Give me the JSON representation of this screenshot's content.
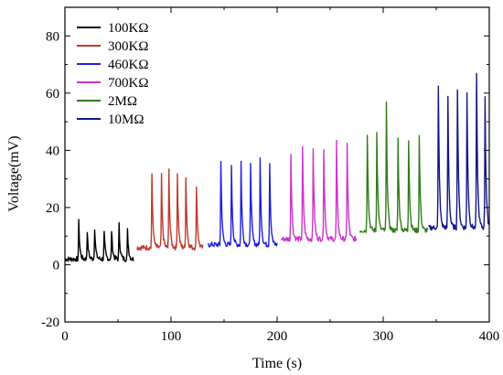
{
  "chart_data": {
    "type": "line",
    "xlabel": "Time (s)",
    "ylabel": "Voltage(mV)",
    "xlim": [
      0,
      400
    ],
    "ylim": [
      -20,
      90
    ],
    "xticks": [
      0,
      100,
      200,
      300,
      400
    ],
    "yticks": [
      -20,
      0,
      20,
      40,
      60,
      80
    ],
    "grid": false,
    "legend_position": "top-left",
    "series": [
      {
        "name": "100KΩ",
        "color": "#000000",
        "baseline": 2,
        "x_range": [
          0,
          65
        ],
        "peaks": [
          [
            13,
            15
          ],
          [
            21,
            12
          ],
          [
            28,
            13
          ],
          [
            37,
            11
          ],
          [
            44,
            12
          ],
          [
            51,
            14
          ],
          [
            59,
            12
          ]
        ]
      },
      {
        "name": "300KΩ",
        "color": "#c0392b",
        "baseline": 6,
        "x_range": [
          68,
          130
        ],
        "peaks": [
          [
            82,
            31
          ],
          [
            91,
            31
          ],
          [
            98,
            33
          ],
          [
            106,
            32
          ],
          [
            114,
            31
          ],
          [
            124,
            28
          ]
        ]
      },
      {
        "name": "460KΩ",
        "color": "#1f1fe0",
        "baseline": 7,
        "x_range": [
          135,
          200
        ],
        "peaks": [
          [
            147,
            36
          ],
          [
            157,
            34
          ],
          [
            166,
            36
          ],
          [
            175,
            36
          ],
          [
            184,
            37
          ],
          [
            193,
            36
          ]
        ]
      },
      {
        "name": "700KΩ",
        "color": "#cc33cc",
        "baseline": 9,
        "x_range": [
          204,
          275
        ],
        "peaks": [
          [
            213,
            39
          ],
          [
            224,
            41
          ],
          [
            234,
            41
          ],
          [
            244,
            41
          ],
          [
            256,
            43
          ],
          [
            266,
            43
          ]
        ]
      },
      {
        "name": "2MΩ",
        "color": "#2e7d1a",
        "baseline": 12,
        "x_range": [
          278,
          342
        ],
        "peaks": [
          [
            285,
            46
          ],
          [
            294,
            47
          ],
          [
            303,
            56
          ],
          [
            314,
            44
          ],
          [
            324,
            44
          ],
          [
            334,
            45
          ]
        ]
      },
      {
        "name": "10MΩ",
        "color": "#14148c",
        "baseline": 13,
        "x_range": [
          343,
          400
        ],
        "peaks": [
          [
            352,
            62
          ],
          [
            361,
            59
          ],
          [
            370,
            62
          ],
          [
            379,
            60
          ],
          [
            388,
            66
          ],
          [
            396,
            59
          ]
        ]
      }
    ]
  }
}
